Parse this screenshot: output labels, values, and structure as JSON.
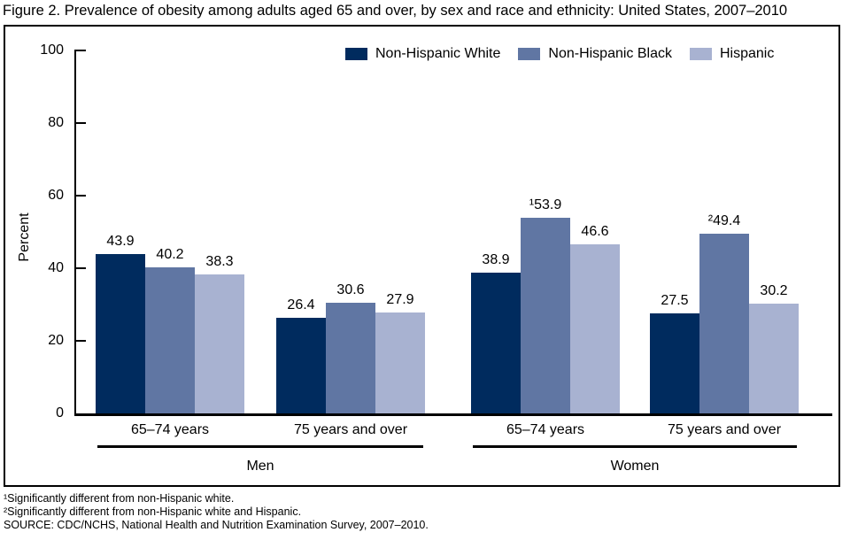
{
  "title": "Figure 2. Prevalence of obesity among adults aged 65 and over, by sex  and race and ethnicity: United States, 2007–2010",
  "chart_data": {
    "type": "bar",
    "title": "Prevalence of obesity among adults aged 65 and over, by sex and race and ethnicity: United States, 2007–2010",
    "ylabel": "Percent",
    "xlabel": "",
    "ylim": [
      0,
      100
    ],
    "yticks": [
      0,
      20,
      40,
      60,
      80,
      100
    ],
    "grid": false,
    "legend_position": "top-center-inside",
    "categories": [
      "65–74 years",
      "75 years and over",
      "65–74 years",
      "75 years and over"
    ],
    "category_groups": [
      {
        "label": "Men",
        "slots": [
          0,
          1
        ]
      },
      {
        "label": "Women",
        "slots": [
          2,
          3
        ]
      }
    ],
    "series": [
      {
        "name": "Non-Hispanic White",
        "color": "#002b5e",
        "values": [
          43.9,
          26.4,
          38.9,
          27.5
        ],
        "labels": [
          "43.9",
          "26.4",
          "38.9",
          "27.5"
        ]
      },
      {
        "name": "Non-Hispanic Black",
        "color": "#6076a3",
        "values": [
          40.2,
          30.6,
          53.9,
          49.4
        ],
        "labels": [
          "40.2",
          "30.6",
          "¹53.9",
          "²49.4"
        ]
      },
      {
        "name": "Hispanic",
        "color": "#a8b2d1",
        "values": [
          38.3,
          27.9,
          46.6,
          30.2
        ],
        "labels": [
          "38.3",
          "27.9",
          "46.6",
          "30.2"
        ]
      }
    ]
  },
  "footnotes": [
    "¹Significantly different from non-Hispanic white.",
    "²Significantly different from non-Hispanic white and Hispanic.",
    "SOURCE: CDC/NCHS, National Health and Nutrition Examination Survey, 2007–2010."
  ],
  "colors": {
    "axis": "#000000",
    "frame": "#000000",
    "background": "#ffffff",
    "text": "#000000"
  }
}
